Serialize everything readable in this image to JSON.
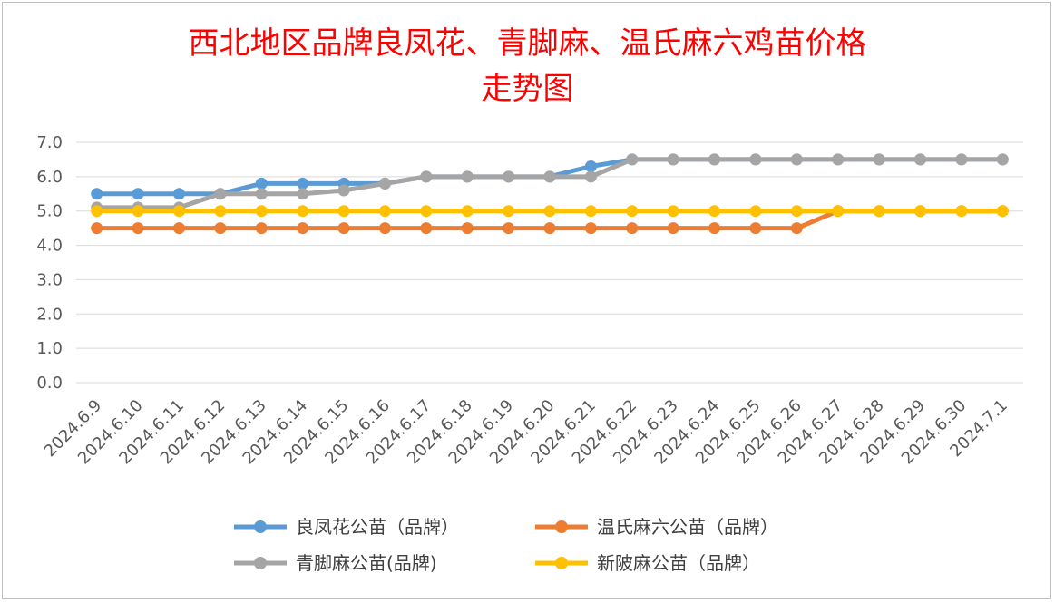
{
  "chart_data": {
    "type": "line",
    "title": "西北地区品牌良凤花、青脚麻、温氏麻六鸡苗价格",
    "subtitle": "走势图",
    "xlabel": "",
    "ylabel": "",
    "ylim": [
      0,
      7
    ],
    "yticks": [
      "0.0",
      "1.0",
      "2.0",
      "3.0",
      "4.0",
      "5.0",
      "6.0",
      "7.0"
    ],
    "grid": true,
    "legend_position": "bottom",
    "categories": [
      "2024.6.9",
      "2024.6.10",
      "2024.6.11",
      "2024.6.12",
      "2024.6.13",
      "2024.6.14",
      "2024.6.15",
      "2024.6.16",
      "2024.6.17",
      "2024.6.18",
      "2024.6.19",
      "2024.6.20",
      "2024.6.21",
      "2024.6.22",
      "2024.6.23",
      "2024.6.24",
      "2024.6.25",
      "2024.6.26",
      "2024.6.27",
      "2024.6.28",
      "2024.6.29",
      "2024.6.30",
      "2024.7.1"
    ],
    "series": [
      {
        "name": "良凤花公苗（品牌）",
        "color": "#5b9bd5",
        "values": [
          5.5,
          5.5,
          5.5,
          5.5,
          5.8,
          5.8,
          5.8,
          5.8,
          6.0,
          6.0,
          6.0,
          6.0,
          6.3,
          6.5,
          6.5,
          6.5,
          6.5,
          6.5,
          6.5,
          6.5,
          6.5,
          6.5,
          6.5
        ]
      },
      {
        "name": "温氏麻六公苗（品牌）",
        "color": "#ed7d31",
        "values": [
          4.5,
          4.5,
          4.5,
          4.5,
          4.5,
          4.5,
          4.5,
          4.5,
          4.5,
          4.5,
          4.5,
          4.5,
          4.5,
          4.5,
          4.5,
          4.5,
          4.5,
          4.5,
          5.0,
          5.0,
          5.0,
          5.0,
          5.0
        ]
      },
      {
        "name": "青脚麻公苗(品牌)",
        "color": "#a5a5a5",
        "values": [
          5.1,
          5.1,
          5.1,
          5.5,
          5.5,
          5.5,
          5.6,
          5.8,
          6.0,
          6.0,
          6.0,
          6.0,
          6.0,
          6.5,
          6.5,
          6.5,
          6.5,
          6.5,
          6.5,
          6.5,
          6.5,
          6.5,
          6.5
        ]
      },
      {
        "name": "新陂麻公苗（品牌）",
        "color": "#ffc000",
        "values": [
          5.0,
          5.0,
          5.0,
          5.0,
          5.0,
          5.0,
          5.0,
          5.0,
          5.0,
          5.0,
          5.0,
          5.0,
          5.0,
          5.0,
          5.0,
          5.0,
          5.0,
          5.0,
          5.0,
          5.0,
          5.0,
          5.0,
          5.0
        ]
      }
    ]
  }
}
